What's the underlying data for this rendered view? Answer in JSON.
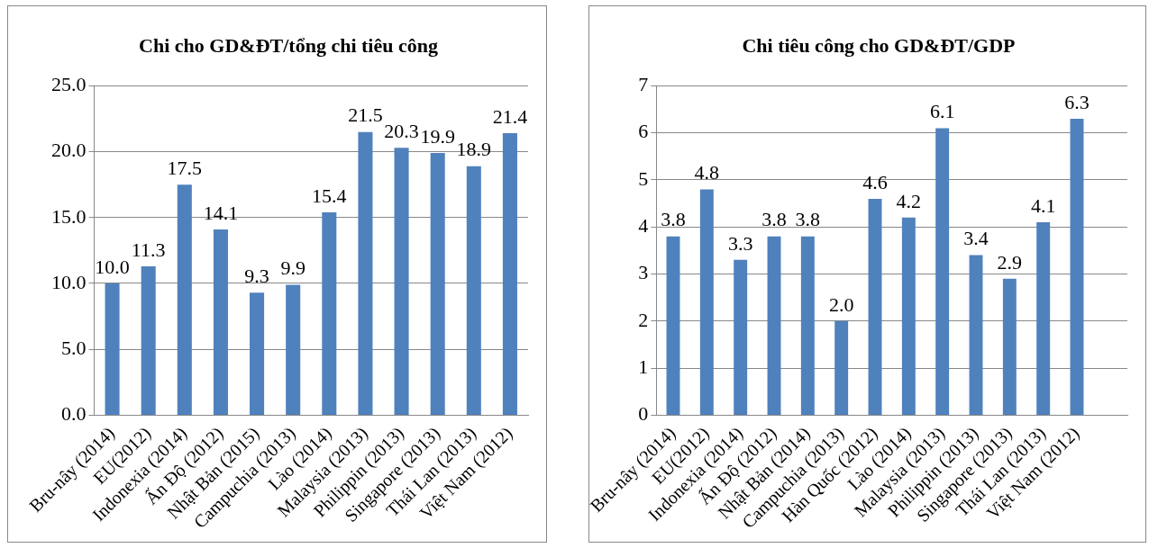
{
  "chart_data": [
    {
      "type": "bar",
      "title": "Chi cho GD&ĐT/tổng chi tiêu công",
      "categories": [
        "Bru-nây (2014)",
        "EU(2012)",
        "Indonexia (2014)",
        "Ấn Độ (2012)",
        "Nhật Bản (2015)",
        "Campuchia (2013)",
        "Lào (2014)",
        "Malaysia (2013)",
        "Philippin (2013)",
        "Singapore (2013)",
        "Thái Lan (2013)",
        "Việt Nam (2012)"
      ],
      "values": [
        10.0,
        11.3,
        17.5,
        14.1,
        9.3,
        9.9,
        15.4,
        21.5,
        20.3,
        19.9,
        18.9,
        21.4
      ],
      "value_labels": [
        "10.0",
        "11.3",
        "17.5",
        "14.1",
        "9.3",
        "9.9",
        "15.4",
        "21.5",
        "20.3",
        "19.9",
        "18.9",
        "21.4"
      ],
      "color": "#4f81bd",
      "ylim": [
        0,
        25
      ],
      "yticks": [
        {
          "value": 0,
          "label": "0.0"
        },
        {
          "value": 5,
          "label": "5.0"
        },
        {
          "value": 10,
          "label": "10.0"
        },
        {
          "value": 15,
          "label": "15.0"
        },
        {
          "value": 20,
          "label": "20.0"
        },
        {
          "value": 25,
          "label": "25.0"
        }
      ],
      "grid": "y",
      "legend": false
    },
    {
      "type": "bar",
      "title": "Chi tiêu công cho GD&ĐT/GDP",
      "categories": [
        "Bru-nây (2014)",
        "EU(2012)",
        "Indonexia (2014)",
        "Ấn Độ (2012)",
        "Nhật Bản (2014)",
        "Campuchia (2013)",
        "Hàn Quốc (2012)",
        "Lào (2014)",
        "Malaysia (2013)",
        "Philippin (2013)",
        "Singapore (2013)",
        "Thái Lan (2013)",
        "Việt Nam (2012)",
        null
      ],
      "values": [
        3.8,
        4.8,
        3.3,
        3.8,
        3.8,
        2.0,
        4.6,
        4.2,
        6.1,
        3.4,
        2.9,
        4.1,
        6.3,
        null
      ],
      "value_labels": [
        "3.8",
        "4.8",
        "3.3",
        "3.8",
        "3.8",
        "2.0",
        "4.6",
        "4.2",
        "6.1",
        "3.4",
        "2.9",
        "4.1",
        "6.3",
        null
      ],
      "color": "#4f81bd",
      "ylim": [
        0,
        7
      ],
      "yticks": [
        0,
        1,
        2,
        3,
        4,
        5,
        6,
        7
      ],
      "grid": "y",
      "legend": false
    }
  ]
}
